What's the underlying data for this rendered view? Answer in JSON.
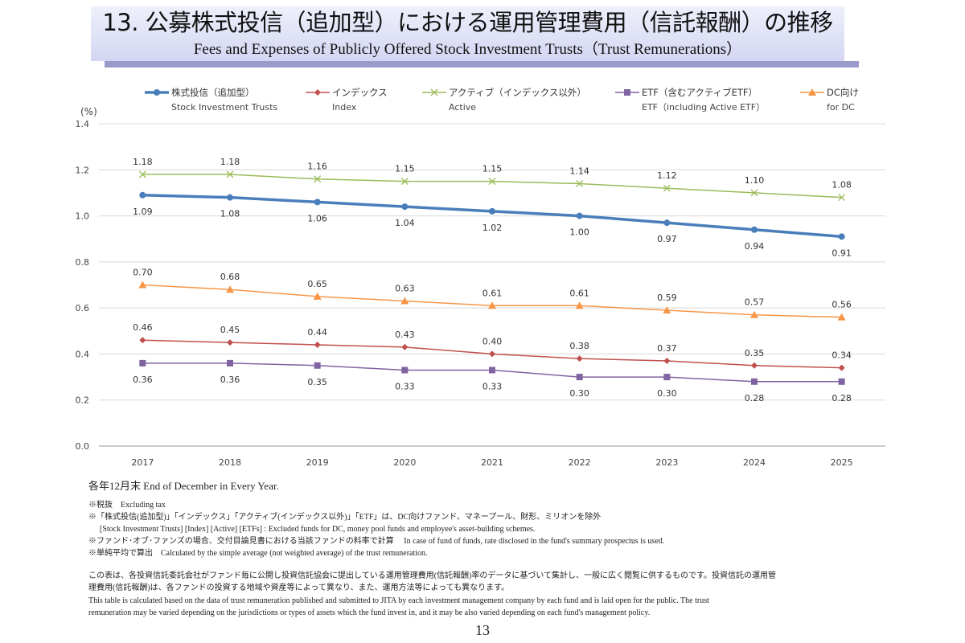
{
  "header": {
    "title_jp": "13. 公募株式投信（追加型）における運用管理費用（信託報酬）の推移",
    "title_en": "Fees and Expenses of Publicly Offered Stock Investment Trusts（Trust Remunerations）"
  },
  "chart_data": {
    "type": "line",
    "ylabel": "(%)",
    "ylim": [
      0.0,
      1.4
    ],
    "yticks": [
      "0.0",
      "0.2",
      "0.4",
      "0.6",
      "0.8",
      "1.0",
      "1.2",
      "1.4"
    ],
    "grid": true,
    "legend_position": "top",
    "categories": [
      "2017",
      "2018",
      "2019",
      "2020",
      "2021",
      "2022",
      "2023",
      "2024",
      "2025"
    ],
    "series": [
      {
        "name": "株式投信（追加型）",
        "name_en": "Stock Investment Trusts",
        "color": "#4a7ebb",
        "marker": "circle",
        "label_pos": "below",
        "values": [
          1.09,
          1.08,
          1.06,
          1.04,
          1.02,
          1.0,
          0.97,
          0.94,
          0.91
        ]
      },
      {
        "name": "インデックス",
        "name_en": "Index",
        "color": "#c0504d",
        "marker": "diamond",
        "label_pos": "above",
        "values": [
          0.46,
          0.45,
          0.44,
          0.43,
          0.4,
          0.38,
          0.37,
          0.35,
          0.34
        ]
      },
      {
        "name": "アクティブ（インデックス以外）",
        "name_en": "Active",
        "color": "#9bbb59",
        "marker": "x",
        "label_pos": "above",
        "values": [
          1.18,
          1.18,
          1.16,
          1.15,
          1.15,
          1.14,
          1.12,
          1.1,
          1.08
        ]
      },
      {
        "name": "ETF（含むアクティブETF）",
        "name_en": "ETF（including Active ETF）",
        "color": "#8064a2",
        "marker": "square",
        "label_pos": "below",
        "values": [
          0.36,
          0.36,
          0.35,
          0.33,
          0.33,
          0.3,
          0.3,
          0.28,
          0.28
        ]
      },
      {
        "name": "DC向け",
        "name_en": "for DC",
        "color": "#f79646",
        "marker": "triangle",
        "label_pos": "above",
        "values": [
          0.7,
          0.68,
          0.65,
          0.63,
          0.61,
          0.61,
          0.59,
          0.57,
          0.56
        ]
      }
    ]
  },
  "notes": {
    "basis": "各年12月末 End of December in Every Year.",
    "n1": "※税抜　Excluding tax",
    "n2": "※「株式投信(追加型)」「インデックス」「アクティブ(インデックス以外)」「ETF」は、DC向けファンド、マネープール、財形、ミリオンを除外",
    "n2_en": "[Stock Investment Trusts] [Index] [Active] [ETFs] : Excluded funds for DC, money pool funds and employee's asset-building schemes.",
    "n3": "※ファンド･オブ･ファンズの場合、交付目論見書における当該ファンドの料率で計算　 In case of fund of funds, rate disclosed in the fund's summary prospectus is used.",
    "n4": "※単純平均で算出　Calculated by the simple average (not weighted average) of the trust remuneration.",
    "p1": "この表は、各投資信託委託会社がファンド毎に公開し投資信託協会に提出している運用管理費用(信託報酬)率のデータに基づいて集計し、一般に広く閲覧に供するものです。投資信託の運用管",
    "p2": "理費用(信託報酬)は、各ファンドの投資する地域や資産等によって異なり、また、運用方法等によっても異なります。",
    "p3": "This table is calculated based on the data of trust remuneration published and submitted to JITA by each investment management company by each fund and is laid open for the public. The trust",
    "p4": "remuneration may be varied depending on the jurisdictions or types of assets which the fund invest in, and it may be also varied depending on each fund's management policy."
  },
  "page_number": "13"
}
